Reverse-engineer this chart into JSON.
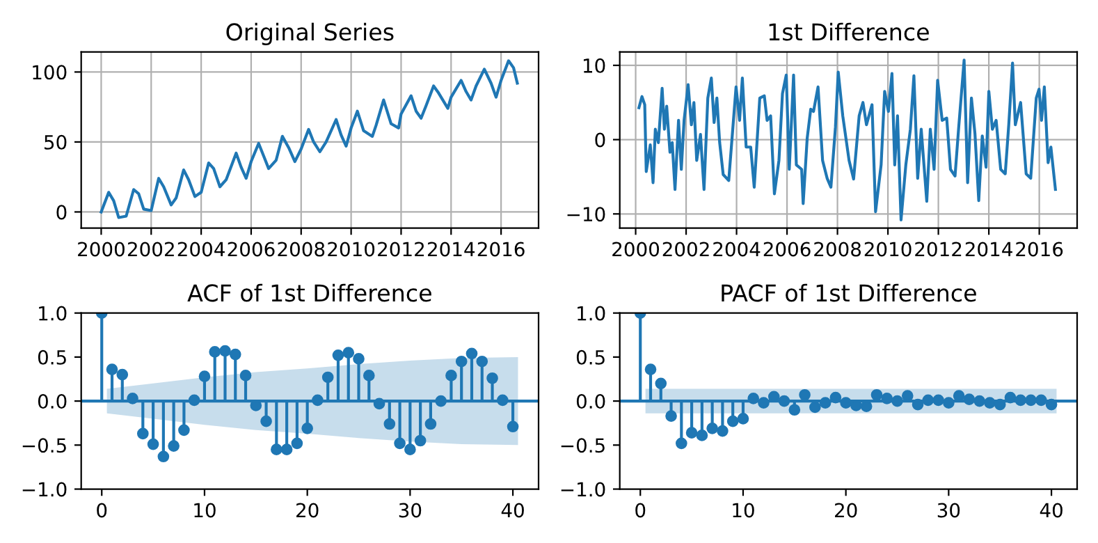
{
  "chart_data": [
    {
      "type": "line",
      "title": "Original Series",
      "xlim": [
        1999.2,
        2017.5
      ],
      "ylim": [
        -11.5,
        114.3
      ],
      "xticks": [
        2000,
        2002,
        2004,
        2006,
        2008,
        2010,
        2012,
        2014,
        2016
      ],
      "yticks": [
        0,
        50,
        100
      ],
      "grid": true,
      "series": [
        {
          "color": "#1f77b4",
          "x": [
            2000.0,
            2000.3,
            2000.5,
            2000.7,
            2001.0,
            2001.3,
            2001.5,
            2001.7,
            2002.0,
            2002.3,
            2002.5,
            2002.8,
            2003.0,
            2003.3,
            2003.5,
            2003.75,
            2004.0,
            2004.3,
            2004.5,
            2004.75,
            2005.0,
            2005.4,
            2005.6,
            2005.8,
            2006.0,
            2006.3,
            2006.5,
            2006.7,
            2007.0,
            2007.25,
            2007.5,
            2007.75,
            2008.0,
            2008.3,
            2008.5,
            2008.75,
            2009.0,
            2009.4,
            2009.6,
            2009.8,
            2010.0,
            2010.25,
            2010.5,
            2010.85,
            2011.0,
            2011.3,
            2011.6,
            2011.9,
            2012.0,
            2012.4,
            2012.6,
            2012.8,
            2013.0,
            2013.3,
            2013.5,
            2013.87,
            2014.0,
            2014.4,
            2014.6,
            2014.8,
            2015.0,
            2015.33,
            2015.6,
            2015.8,
            2016.0,
            2016.3,
            2016.5,
            2016.65
          ],
          "values": [
            0,
            14,
            8,
            -4,
            -3,
            16,
            13,
            2,
            1,
            24,
            18,
            5,
            10,
            30,
            23,
            11,
            14,
            35,
            31,
            18,
            23,
            42,
            32,
            24,
            36,
            49,
            40,
            31,
            37,
            54,
            46,
            36,
            45,
            59,
            50,
            43,
            50,
            66,
            55,
            47,
            60,
            72,
            58,
            54,
            62,
            80,
            63,
            60,
            70,
            83,
            72,
            67,
            76,
            90,
            85,
            74,
            82,
            94,
            86,
            80,
            90,
            102,
            92,
            82,
            94,
            108,
            103,
            92
          ]
        }
      ]
    },
    {
      "type": "line",
      "title": "1st Difference",
      "xlim": [
        1999.37,
        2017.5
      ],
      "ylim": [
        -11.9,
        11.8
      ],
      "xticks": [
        2000,
        2002,
        2004,
        2006,
        2008,
        2010,
        2012,
        2014,
        2016
      ],
      "yticks": [
        {
          "value": -10,
          "label": "−10"
        },
        0,
        10
      ],
      "grid": true,
      "series": [
        {
          "color": "#1f77b4",
          "x": [
            2000.13,
            2000.25,
            2000.36,
            2000.42,
            2000.58,
            2000.69,
            2000.78,
            2000.9,
            2001.05,
            2001.14,
            2001.23,
            2001.36,
            2001.45,
            2001.56,
            2001.7,
            2001.81,
            2001.92,
            2002.08,
            2002.21,
            2002.31,
            2002.42,
            2002.57,
            2002.71,
            2002.86,
            2003.0,
            2003.11,
            2003.22,
            2003.33,
            2003.47,
            2003.69,
            2003.98,
            2004.12,
            2004.23,
            2004.38,
            2004.56,
            2004.7,
            2004.92,
            2005.1,
            2005.21,
            2005.35,
            2005.5,
            2005.68,
            2005.82,
            2005.97,
            2006.09,
            2006.26,
            2006.37,
            2006.58,
            2006.64,
            2006.8,
            2006.94,
            2007.05,
            2007.23,
            2007.41,
            2007.59,
            2007.74,
            2007.92,
            2008.03,
            2008.21,
            2008.46,
            2008.64,
            2008.86,
            2009.01,
            2009.15,
            2009.37,
            2009.51,
            2009.73,
            2009.87,
            2010.02,
            2010.16,
            2010.27,
            2010.38,
            2010.52,
            2010.71,
            2010.89,
            2011.03,
            2011.18,
            2011.32,
            2011.54,
            2011.68,
            2011.83,
            2011.97,
            2012.15,
            2012.33,
            2012.48,
            2012.66,
            2012.8,
            2013.02,
            2013.16,
            2013.31,
            2013.45,
            2013.6,
            2013.74,
            2013.89,
            2014.0,
            2014.14,
            2014.29,
            2014.47,
            2014.65,
            2014.79,
            2014.94,
            2015.05,
            2015.26,
            2015.48,
            2015.66,
            2015.88,
            2015.99,
            2016.09,
            2016.2,
            2016.35,
            2016.46,
            2016.64
          ],
          "values": [
            4.3,
            5.8,
            4.7,
            -4.3,
            -0.7,
            -5.8,
            1.4,
            -0.4,
            6.9,
            1.4,
            4.5,
            -1.7,
            -0.4,
            -6.7,
            2.6,
            -4.0,
            2.6,
            7.4,
            2.0,
            5.0,
            -2.8,
            0.7,
            -6.7,
            5.6,
            8.3,
            2.3,
            5.6,
            -0.4,
            -4.7,
            -5.5,
            7.1,
            2.6,
            8.3,
            -1.0,
            -1.0,
            -6.4,
            5.6,
            5.9,
            2.6,
            3.2,
            -7.3,
            -2.8,
            6.2,
            8.7,
            -4.0,
            8.7,
            -3.4,
            -4.0,
            -8.6,
            0.2,
            4.1,
            3.8,
            7.1,
            -2.8,
            -5.2,
            -6.4,
            1.7,
            9.1,
            3.2,
            -2.8,
            -5.3,
            3.2,
            5.0,
            2.0,
            4.7,
            -9.7,
            -3.4,
            6.5,
            3.8,
            8.9,
            -3.4,
            3.2,
            -10.8,
            -3.4,
            1.4,
            8.6,
            -5.2,
            1.4,
            -8.3,
            1.4,
            -4.0,
            8.0,
            2.6,
            2.9,
            -4.0,
            -4.9,
            1.4,
            10.7,
            -5.8,
            5.6,
            0.8,
            -8.2,
            0.5,
            -3.7,
            6.5,
            1.4,
            2.6,
            -4.0,
            -4.6,
            2.0,
            10.3,
            2.0,
            5.0,
            -4.6,
            -5.2,
            5.6,
            6.8,
            2.6,
            7.1,
            -3.1,
            -1.0,
            -6.7
          ]
        }
      ]
    },
    {
      "type": "lollipop",
      "title": "ACF of 1st Difference",
      "xlim": [
        -2.0,
        42.5
      ],
      "ylim": [
        -1.0,
        1.0
      ],
      "xticks": [
        0,
        10,
        20,
        30,
        40
      ],
      "yticks": [
        {
          "value": -1.0,
          "label": "−1.0"
        },
        {
          "value": -0.5,
          "label": "−0.5"
        },
        {
          "value": 0.0,
          "label": "0.0"
        },
        {
          "value": 0.5,
          "label": "0.5"
        },
        {
          "value": 1.0,
          "label": "1.0"
        }
      ],
      "series": [
        {
          "color": "#1f77b4",
          "marker": "circle",
          "x": [
            0,
            1,
            2,
            3,
            4,
            5,
            6,
            7,
            8,
            9,
            10,
            11,
            12,
            13,
            14,
            15,
            16,
            17,
            18,
            19,
            20,
            21,
            22,
            23,
            24,
            25,
            26,
            27,
            28,
            29,
            30,
            31,
            32,
            33,
            34,
            35,
            36,
            37,
            38,
            39,
            40
          ],
          "values": [
            1.0,
            0.36,
            0.3,
            0.03,
            -0.37,
            -0.49,
            -0.63,
            -0.51,
            -0.33,
            0.01,
            0.28,
            0.56,
            0.57,
            0.53,
            0.29,
            -0.05,
            -0.23,
            -0.55,
            -0.55,
            -0.48,
            -0.31,
            0.01,
            0.27,
            0.52,
            0.55,
            0.48,
            0.29,
            -0.03,
            -0.26,
            -0.48,
            -0.55,
            -0.45,
            -0.26,
            0.0,
            0.29,
            0.45,
            0.54,
            0.45,
            0.26,
            0.01,
            -0.29
          ]
        },
        {
          "type": "line",
          "color": "#1f77b4",
          "x": [
            -2.0,
            0.5,
            5,
            10,
            15,
            20,
            25,
            30,
            35,
            40.5,
            42.5
          ],
          "values": [
            0,
            0,
            0,
            0,
            0,
            0,
            0,
            0,
            0,
            0,
            0
          ],
          "lower": [
            null,
            -0.14,
            -0.2,
            -0.27,
            -0.33,
            -0.37,
            -0.42,
            -0.46,
            -0.49,
            -0.5,
            null
          ],
          "upper": [
            null,
            0.14,
            0.2,
            0.27,
            0.33,
            0.37,
            0.42,
            0.46,
            0.49,
            0.5,
            null
          ]
        }
      ]
    },
    {
      "type": "lollipop",
      "title": "PACF of 1st Difference",
      "xlim": [
        -2.0,
        42.5
      ],
      "ylim": [
        -1.0,
        1.0
      ],
      "xticks": [
        0,
        10,
        20,
        30,
        40
      ],
      "yticks": [
        {
          "value": -1.0,
          "label": "−1.0"
        },
        {
          "value": -0.5,
          "label": "−0.5"
        },
        {
          "value": 0.0,
          "label": "0.0"
        },
        {
          "value": 0.5,
          "label": "0.5"
        },
        {
          "value": 1.0,
          "label": "1.0"
        }
      ],
      "series": [
        {
          "color": "#1f77b4",
          "marker": "circle",
          "x": [
            0,
            1,
            2,
            3,
            4,
            5,
            6,
            7,
            8,
            9,
            10,
            11,
            12,
            13,
            14,
            15,
            16,
            17,
            18,
            19,
            20,
            21,
            22,
            23,
            24,
            25,
            26,
            27,
            28,
            29,
            30,
            31,
            32,
            33,
            34,
            35,
            36,
            37,
            38,
            39,
            40
          ],
          "values": [
            1.0,
            0.36,
            0.2,
            -0.17,
            -0.48,
            -0.36,
            -0.39,
            -0.31,
            -0.34,
            -0.23,
            -0.2,
            0.03,
            -0.02,
            0.05,
            0.0,
            -0.1,
            0.07,
            -0.07,
            -0.02,
            0.04,
            -0.02,
            -0.05,
            -0.06,
            0.07,
            0.03,
            0.0,
            0.06,
            -0.04,
            0.01,
            0.01,
            -0.02,
            0.06,
            0.02,
            0.0,
            -0.02,
            -0.04,
            0.04,
            0.01,
            0.01,
            0.01,
            -0.04
          ]
        },
        {
          "type": "line",
          "color": "#1f77b4",
          "x": [
            -2.0,
            0.5,
            40.5,
            42.5
          ],
          "values": [
            0,
            0,
            0,
            0
          ],
          "lower": [
            null,
            -0.14,
            -0.14,
            null
          ],
          "upper": [
            null,
            0.14,
            0.14,
            null
          ]
        }
      ]
    }
  ]
}
